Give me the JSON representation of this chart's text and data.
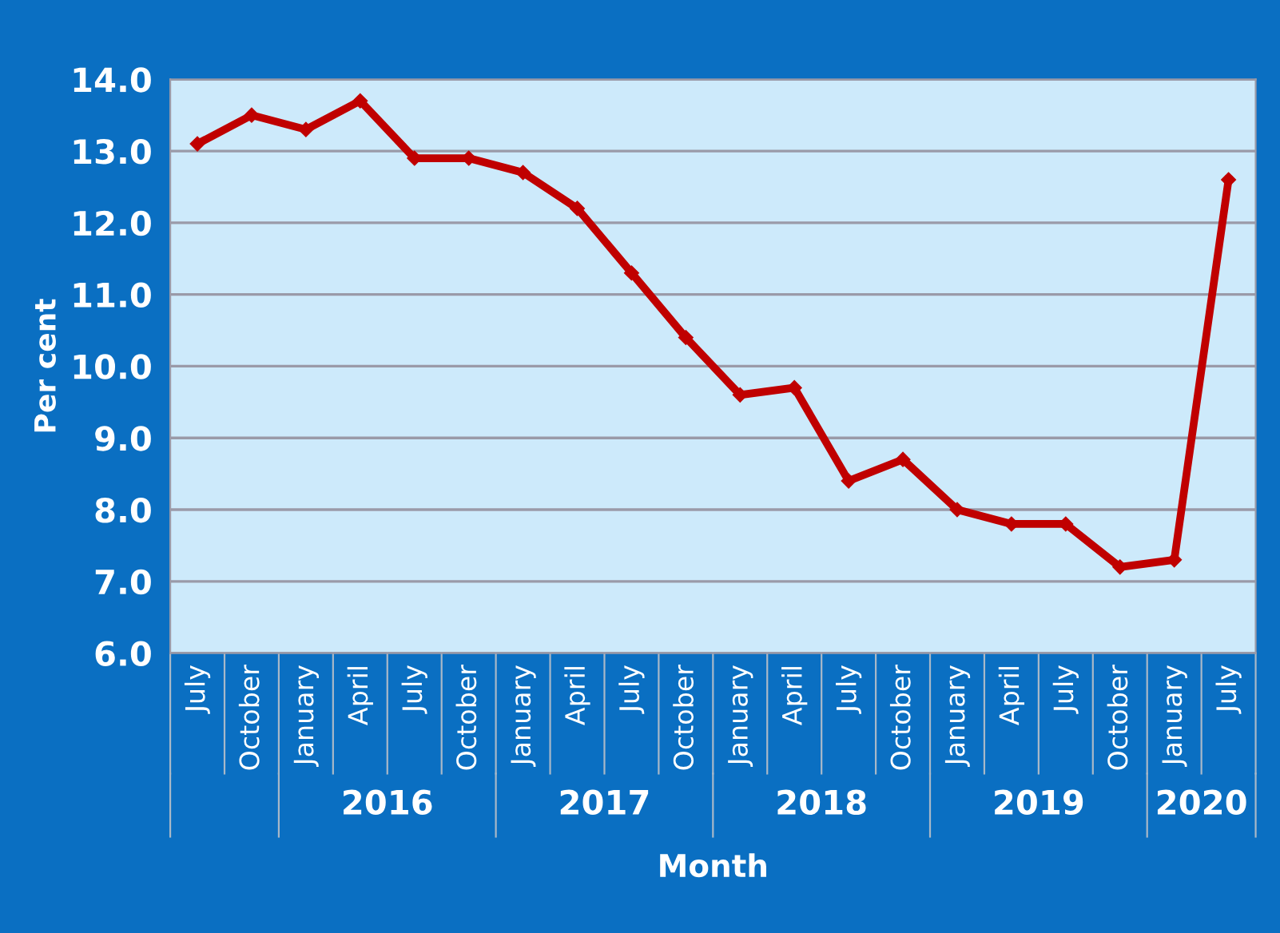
{
  "chart_data": {
    "type": "line",
    "xlabel": "Month",
    "ylabel": "Per cent",
    "categories": [
      "July",
      "October",
      "January",
      "April",
      "July",
      "October",
      "January",
      "April",
      "July",
      "October",
      "January",
      "April",
      "July",
      "October",
      "January",
      "April",
      "July",
      "October",
      "January",
      "July"
    ],
    "series": [
      {
        "color": "#c00000",
        "values": [
          13.1,
          13.5,
          13.3,
          13.7,
          12.9,
          12.9,
          12.7,
          12.2,
          11.3,
          10.4,
          9.6,
          9.7,
          8.4,
          8.7,
          8.0,
          7.8,
          7.8,
          7.2,
          7.3,
          12.6
        ]
      }
    ],
    "ylim": [
      6.0,
      14.0
    ],
    "yticks": [
      {
        "value": 6,
        "label": "6.0"
      },
      {
        "value": 7,
        "label": "7.0"
      },
      {
        "value": 8,
        "label": "8.0"
      },
      {
        "value": 9,
        "label": "9.0"
      },
      {
        "value": 10,
        "label": "10.0"
      },
      {
        "value": 11,
        "label": "11.0"
      },
      {
        "value": 12,
        "label": "12.0"
      },
      {
        "value": 13,
        "label": "13.0"
      },
      {
        "value": 14,
        "label": "14.0"
      }
    ],
    "grid": "y",
    "marker": "diamond",
    "line_style": "solid",
    "annotations": [
      "2016",
      "2017",
      "2018",
      "2019",
      "2020"
    ]
  }
}
